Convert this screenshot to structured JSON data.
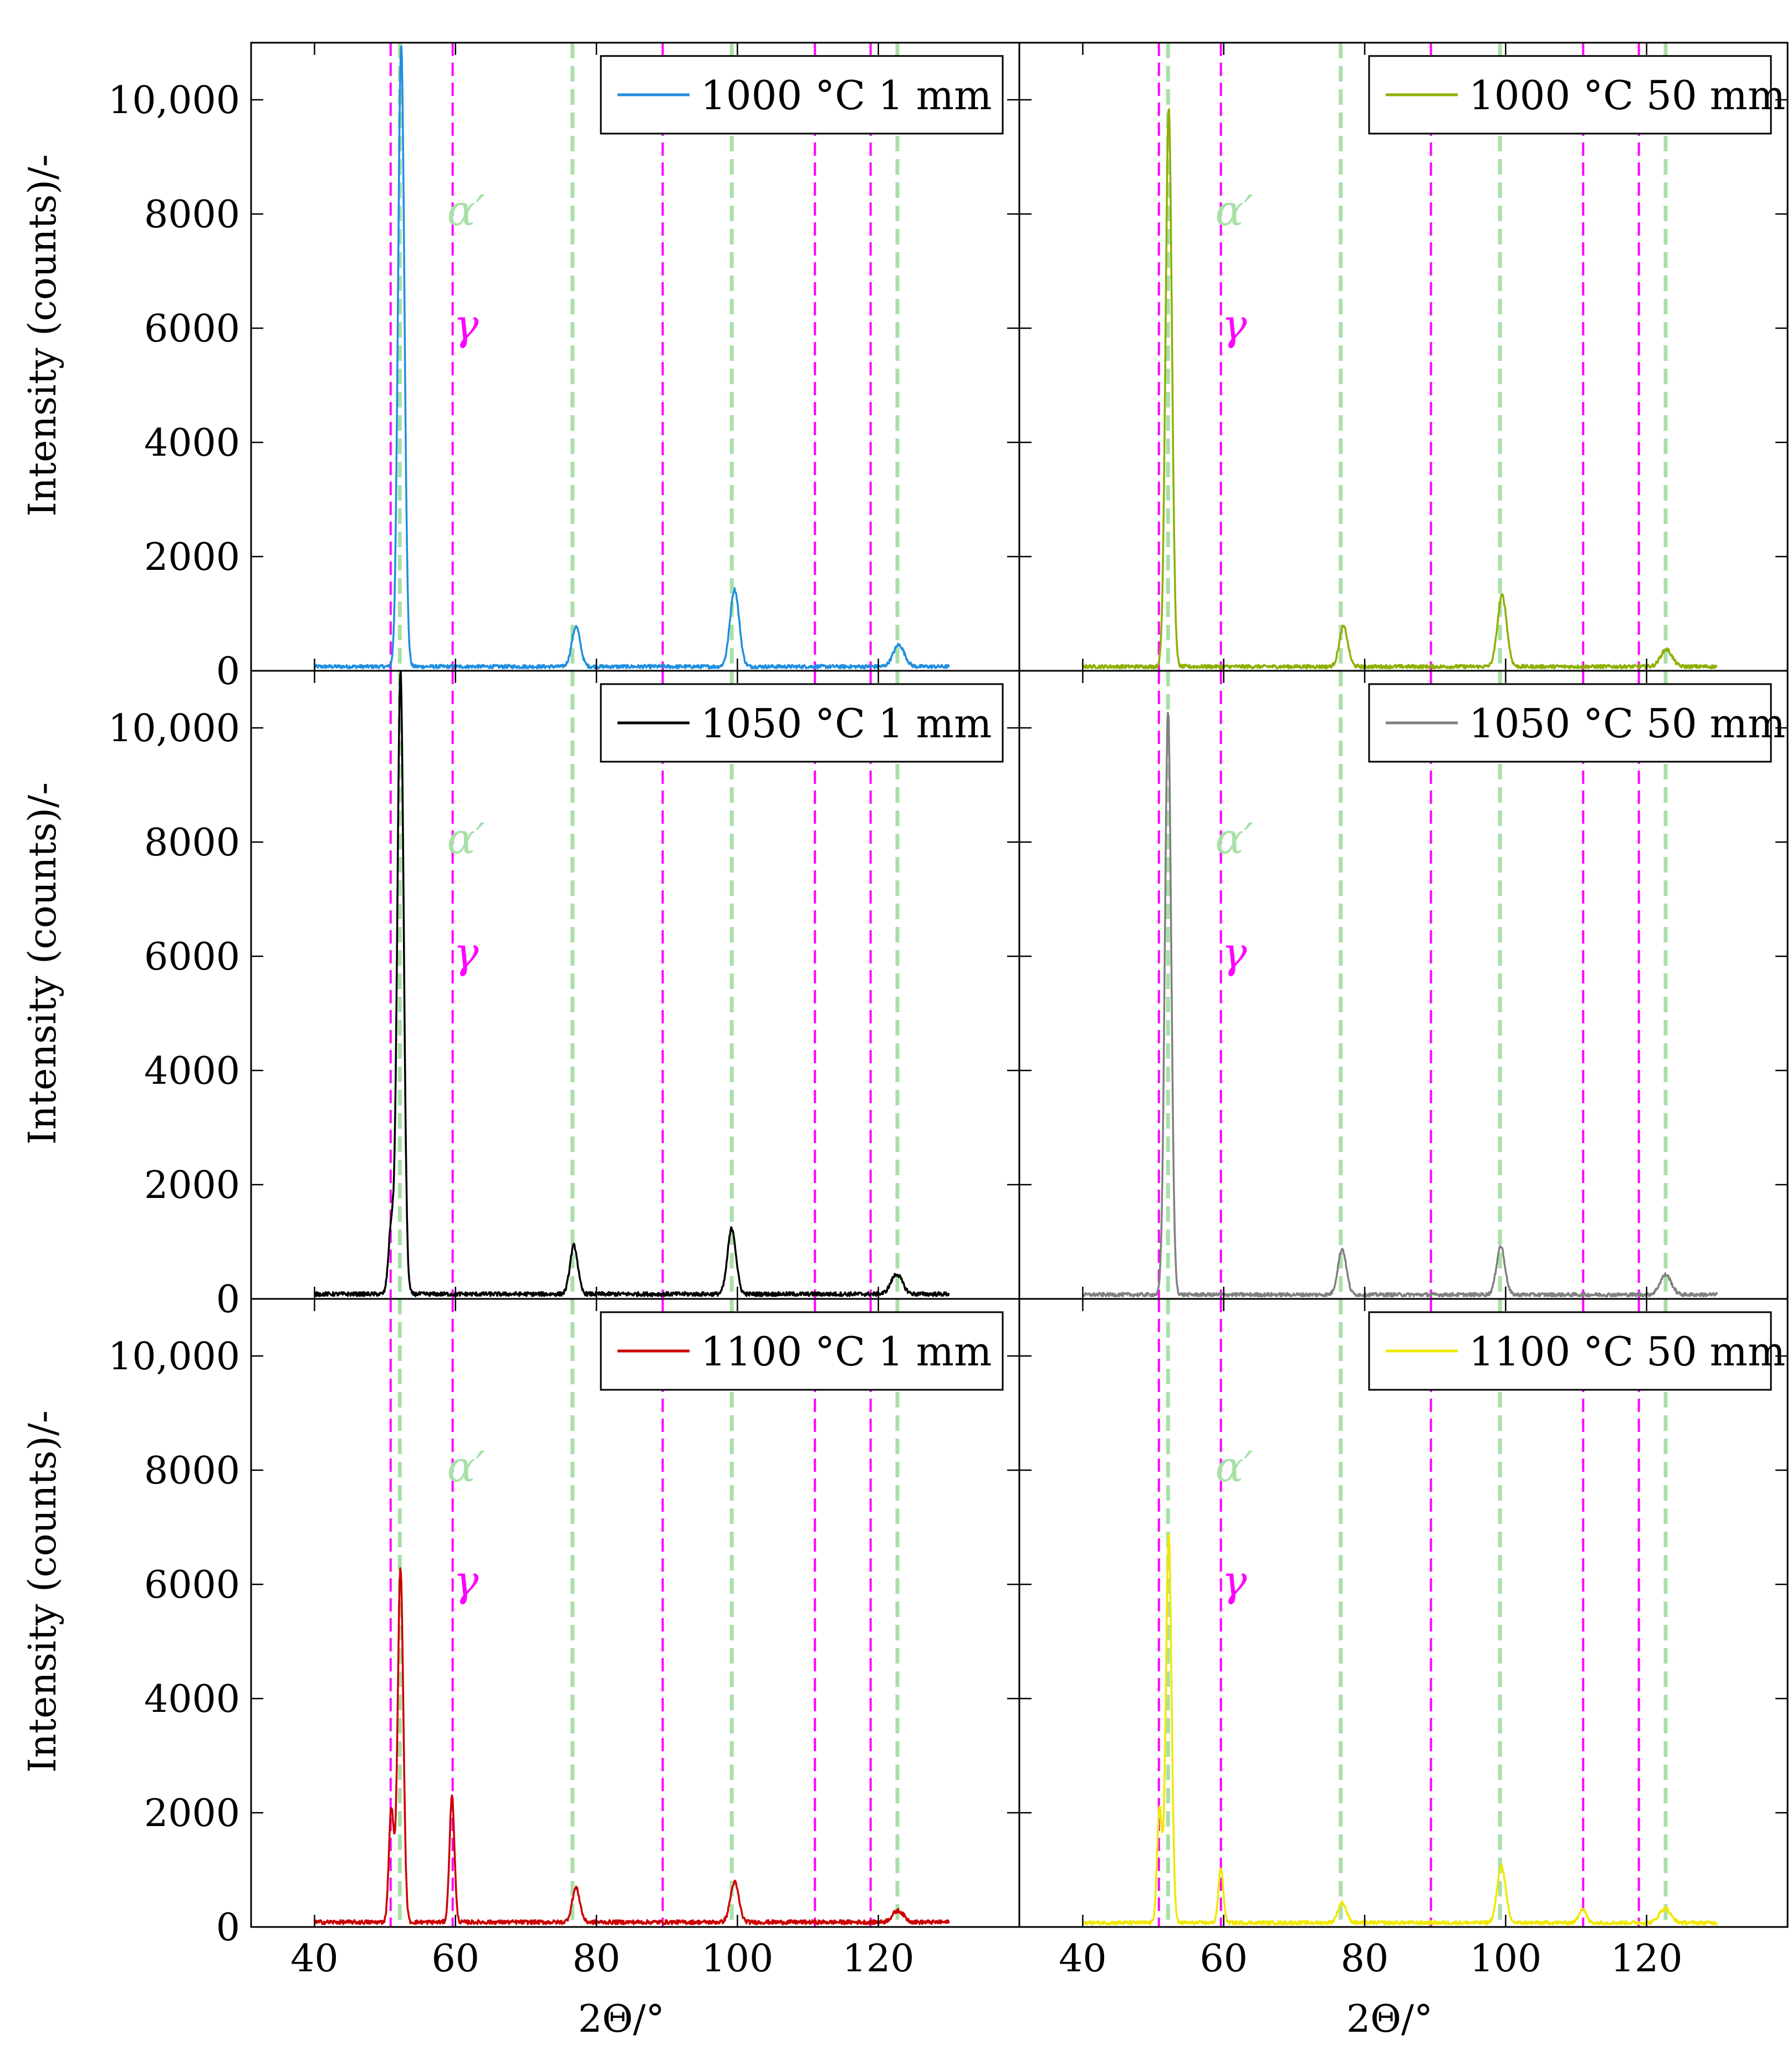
{
  "figure": {
    "ylabel": "Intensity (counts)/-",
    "xlabel": "2Θ/°",
    "x_ticks": [
      40,
      60,
      80,
      100,
      120
    ],
    "y_ticks": [
      0,
      2000,
      4000,
      6000,
      8000,
      10000
    ],
    "y_tick_labels": [
      "0",
      "2000",
      "4000",
      "6000",
      "8000",
      "10,000"
    ],
    "phase_labels": {
      "alpha": "α′",
      "gamma": "γ"
    },
    "reference_lines": {
      "gamma_color": "#ff00ff",
      "alpha_color": "#a8e0a8",
      "gamma_positions": [
        50.8,
        59.6,
        89.4,
        111.0,
        118.9
      ],
      "alpha_positions": [
        52.1,
        76.6,
        99.2,
        122.7
      ]
    }
  },
  "chart_data": [
    {
      "type": "line",
      "legend": "1000 °C 1 mm",
      "color": "#1f8fe0",
      "xlim": [
        31,
        140
      ],
      "ylim": [
        0,
        11000
      ],
      "noise_level": 70,
      "series": [
        {
          "name": "1000 °C 1 mm",
          "peaks": [
            [
              52.3,
              10900,
              0.45
            ],
            [
              77.1,
              700,
              0.6
            ],
            [
              99.6,
              1350,
              0.65
            ],
            [
              122.9,
              380,
              0.8
            ]
          ]
        }
      ]
    },
    {
      "type": "line",
      "legend": "1000 °C 50 mm",
      "color": "#8db000",
      "xlim": [
        31,
        140
      ],
      "ylim": [
        0,
        11000
      ],
      "noise_level": 70,
      "series": [
        {
          "name": "1000 °C 50 mm",
          "peaks": [
            [
              52.2,
              9800,
              0.45
            ],
            [
              77.0,
              700,
              0.6
            ],
            [
              99.5,
              1250,
              0.65
            ],
            [
              122.8,
              300,
              0.8
            ]
          ]
        }
      ]
    },
    {
      "type": "line",
      "legend": "1050 °C 1 mm",
      "color": "#000000",
      "xlim": [
        31,
        140
      ],
      "ylim": [
        0,
        11000
      ],
      "noise_level": 80,
      "series": [
        {
          "name": "1050 °C 1 mm",
          "peaks": [
            [
              50.9,
              1200,
              0.4
            ],
            [
              52.2,
              10900,
              0.45
            ],
            [
              76.8,
              850,
              0.55
            ],
            [
              99.2,
              1150,
              0.6
            ],
            [
              122.6,
              350,
              0.8
            ]
          ]
        }
      ]
    },
    {
      "type": "line",
      "legend": "1050 °C 50 mm",
      "color": "#808080",
      "xlim": [
        31,
        140
      ],
      "ylim": [
        0,
        11000
      ],
      "noise_level": 70,
      "series": [
        {
          "name": "1050 °C 50 mm",
          "peaks": [
            [
              52.1,
              10200,
              0.45
            ],
            [
              76.8,
              800,
              0.6
            ],
            [
              99.3,
              850,
              0.6
            ],
            [
              122.7,
              350,
              0.8
            ]
          ]
        }
      ]
    },
    {
      "type": "line",
      "legend": "1100 °C 1 mm",
      "color": "#cc0000",
      "xlim": [
        31,
        140
      ],
      "ylim": [
        0,
        11000
      ],
      "noise_level": 80,
      "series": [
        {
          "name": "1100 °C 1 mm",
          "peaks": [
            [
              50.9,
              2000,
              0.35
            ],
            [
              52.2,
              6200,
              0.4
            ],
            [
              59.5,
              2200,
              0.35
            ],
            [
              77.1,
              600,
              0.55
            ],
            [
              99.6,
              700,
              0.6
            ],
            [
              122.8,
              200,
              0.8
            ]
          ]
        }
      ]
    },
    {
      "type": "line",
      "legend": "1100 °C 50 mm",
      "color": "#f0e800",
      "xlim": [
        31,
        140
      ],
      "ylim": [
        0,
        11000
      ],
      "noise_level": 70,
      "series": [
        {
          "name": "1100 °C 50 mm",
          "peaks": [
            [
              50.9,
              2000,
              0.35
            ],
            [
              52.2,
              6800,
              0.4
            ],
            [
              59.6,
              950,
              0.35
            ],
            [
              76.8,
              350,
              0.6
            ],
            [
              99.4,
              1000,
              0.6
            ],
            [
              110.9,
              250,
              0.5
            ],
            [
              122.6,
              250,
              0.8
            ]
          ]
        }
      ]
    }
  ]
}
